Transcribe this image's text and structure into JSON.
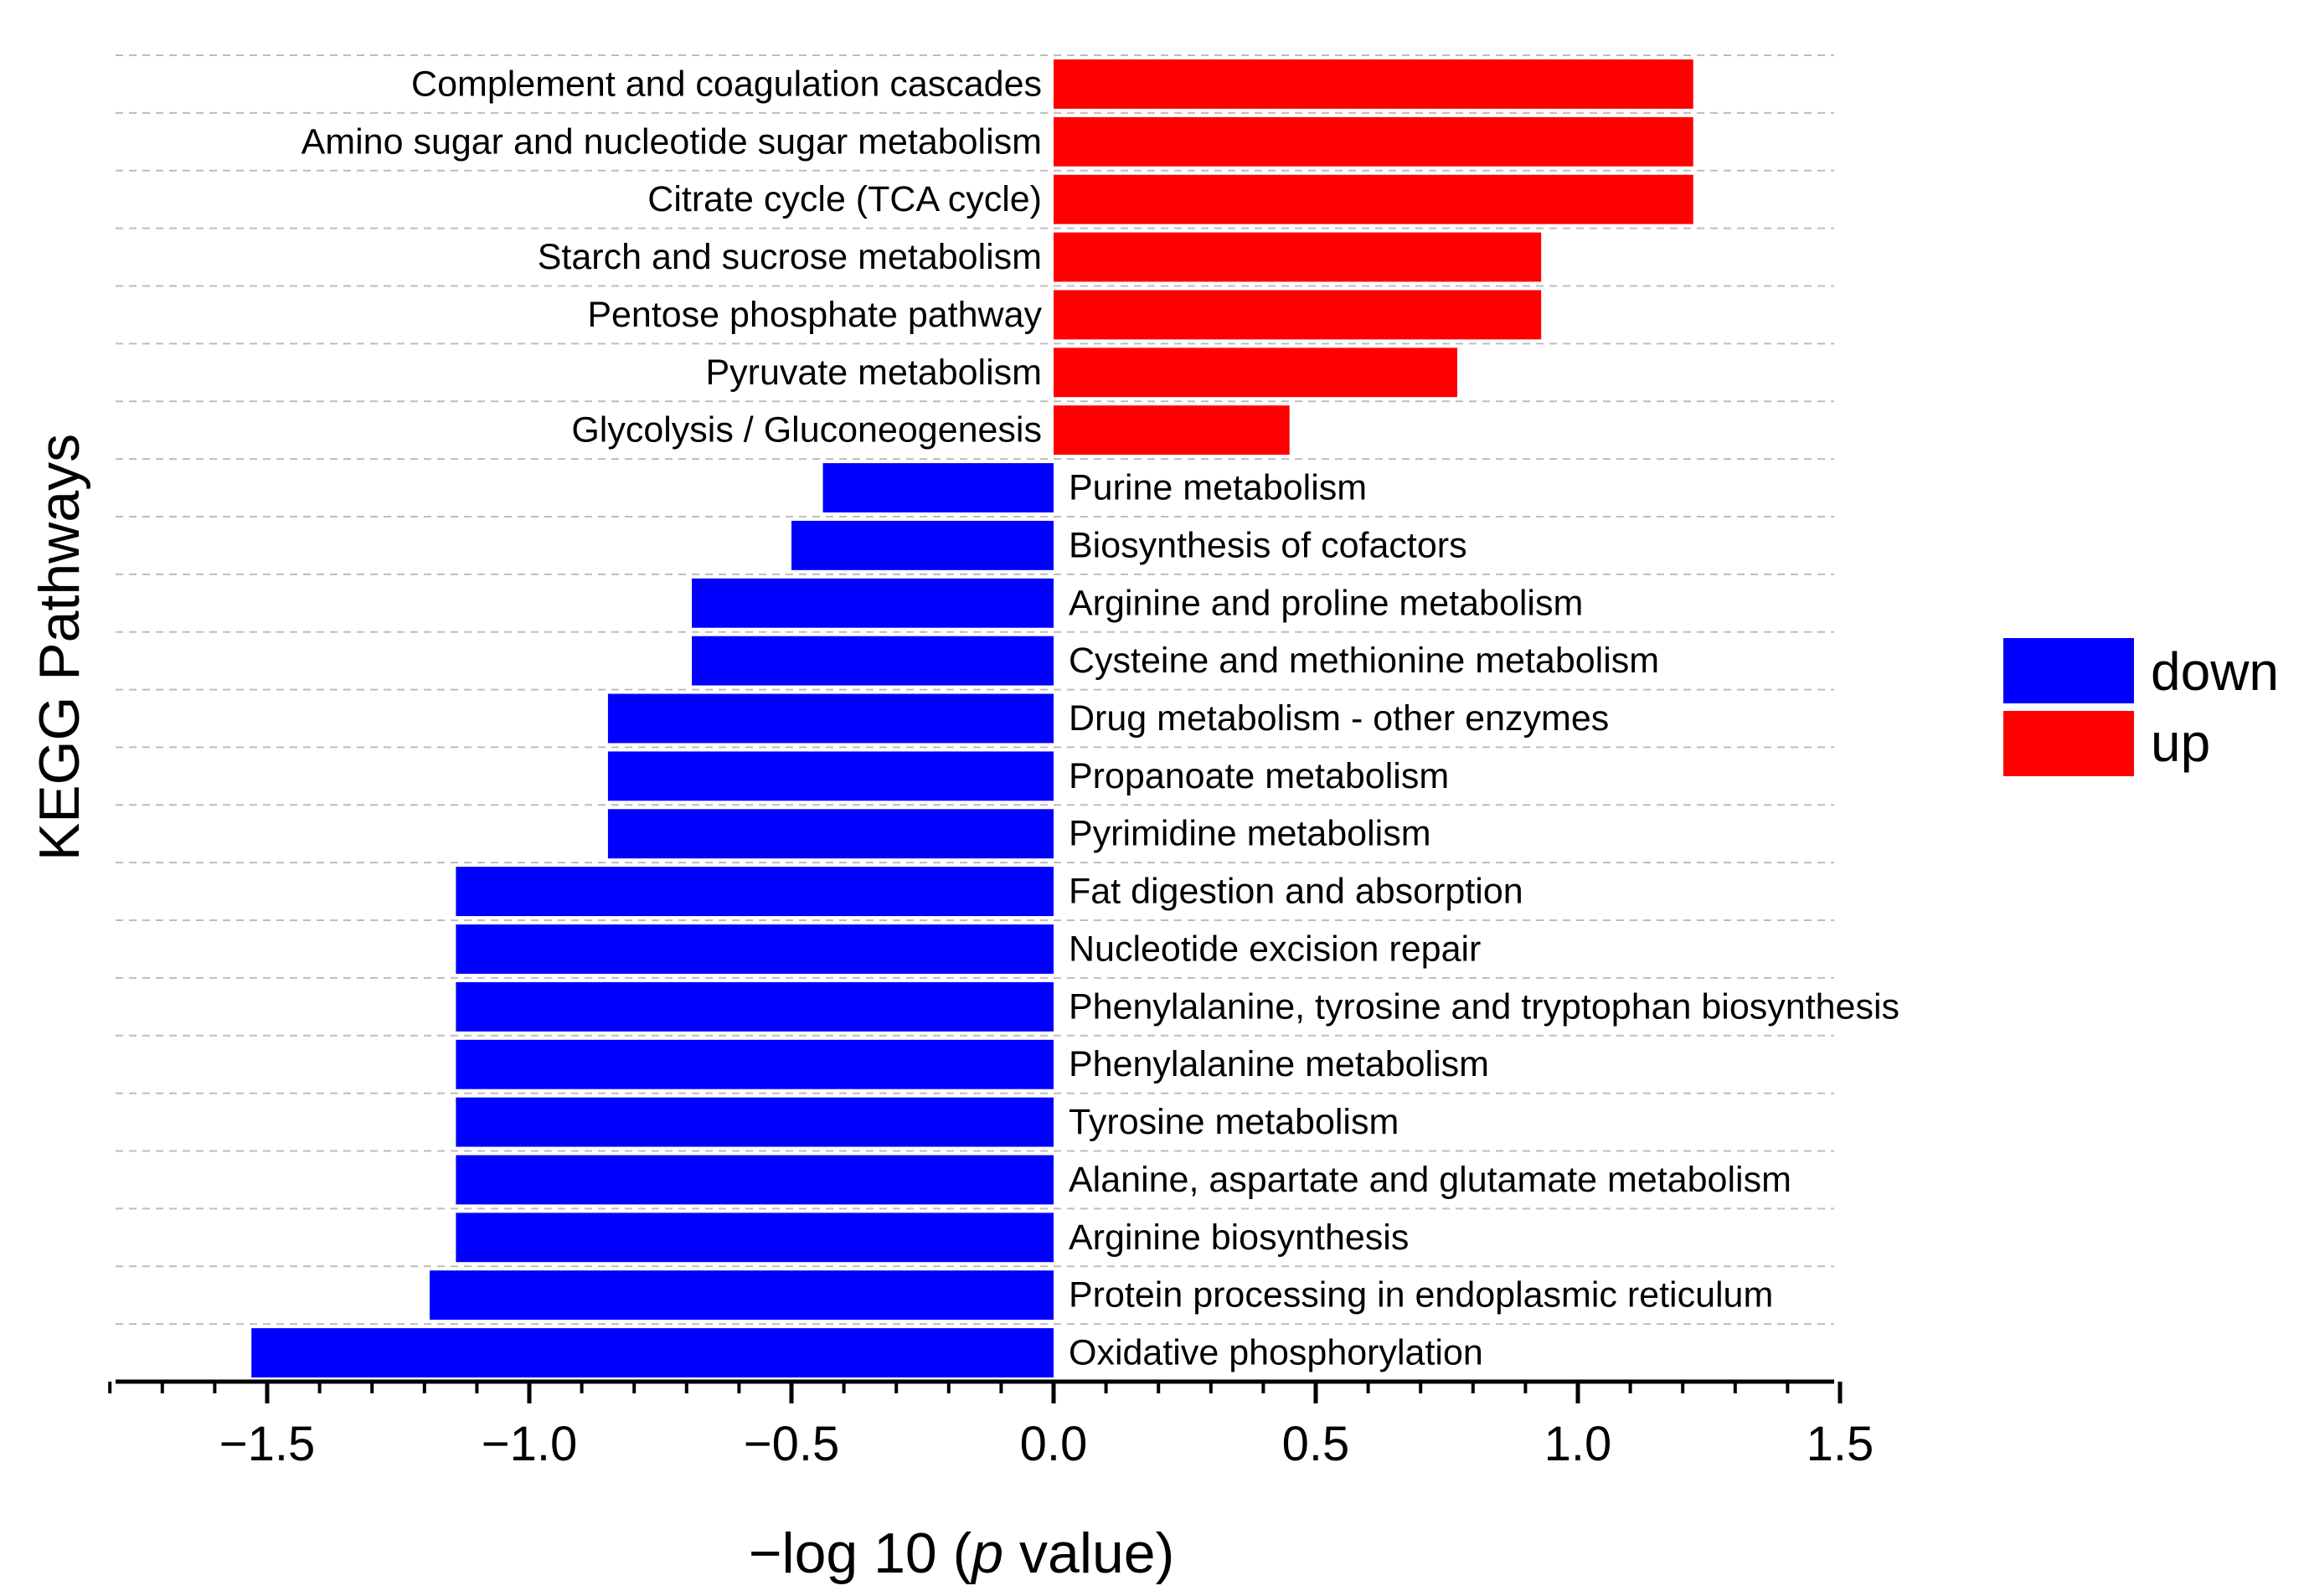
{
  "chart_data": {
    "type": "bar",
    "orientation": "horizontal",
    "title": "",
    "xlabel": {
      "prefix": "−log 10 (",
      "italic": "p",
      "suffix": " value)"
    },
    "ylabel": "KEGG Pathways",
    "xlim": [
      -1.8,
      1.5
    ],
    "xticks": [
      -1.5,
      -1.0,
      -0.5,
      0.0,
      0.5,
      1.0,
      1.5
    ],
    "xtick_labels": [
      "−1.5",
      "−1.0",
      "−0.5",
      "0.0",
      "0.5",
      "1.0",
      "1.5"
    ],
    "minor_tick_step": 0.1,
    "grid": "horizontal dashed",
    "legend_position": "right",
    "legend": [
      {
        "name": "down",
        "color": "#0000ff"
      },
      {
        "name": "up",
        "color": "#ff0000"
      }
    ],
    "categories": [
      "Complement and coagulation cascades",
      "Amino sugar and nucleotide sugar metabolism",
      "Citrate cycle (TCA cycle)",
      "Starch and sucrose metabolism",
      "Pentose phosphate pathway",
      "Pyruvate metabolism",
      "Glycolysis / Gluconeogenesis",
      "Purine metabolism",
      "Biosynthesis of cofactors",
      "Arginine and proline metabolism",
      "Cysteine and methionine metabolism",
      "Drug metabolism - other enzymes",
      "Propanoate metabolism",
      "Pyrimidine metabolism",
      "Fat digestion and absorption",
      "Nucleotide excision repair",
      "Phenylalanine, tyrosine and tryptophan biosynthesis",
      "Phenylalanine metabolism",
      "Tyrosine metabolism",
      "Alanine, aspartate and glutamate metabolism",
      "Arginine biosynthesis",
      "Protein processing in endoplasmic reticulum",
      "Oxidative phosphorylation"
    ],
    "values": [
      1.22,
      1.22,
      1.22,
      0.93,
      0.93,
      0.77,
      0.45,
      -0.44,
      -0.5,
      -0.69,
      -0.69,
      -0.85,
      -0.85,
      -0.85,
      -1.14,
      -1.14,
      -1.14,
      -1.14,
      -1.14,
      -1.14,
      -1.14,
      -1.19,
      -1.53
    ],
    "groups": [
      "up",
      "up",
      "up",
      "up",
      "up",
      "up",
      "up",
      "down",
      "down",
      "down",
      "down",
      "down",
      "down",
      "down",
      "down",
      "down",
      "down",
      "down",
      "down",
      "down",
      "down",
      "down",
      "down"
    ]
  }
}
